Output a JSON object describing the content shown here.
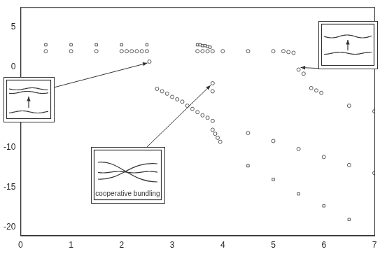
{
  "chart_data": {
    "type": "scatter",
    "xlim": [
      0,
      7
    ],
    "xticks": [
      0,
      1,
      2,
      3,
      4,
      5,
      6,
      7
    ],
    "ylim": [
      -21,
      7.5
    ],
    "yticks": [
      -20,
      -15,
      -10,
      -5,
      0,
      5
    ],
    "grid": false,
    "annotations": [
      {
        "text": "cooperative bundling"
      }
    ],
    "series": [
      {
        "color": "#555555",
        "marker": "square",
        "x": [
          0.5,
          1,
          1.5,
          2,
          2.5,
          3.5,
          3.55,
          3.6,
          3.65,
          3.7,
          3.75
        ],
        "y": [
          2.8,
          2.8,
          2.8,
          2.8,
          2.8,
          2.8,
          2.8,
          2.7,
          2.7,
          2.6,
          2.5
        ]
      },
      {
        "color": "#555555",
        "marker": "circle",
        "x": [
          0.5,
          1,
          1.5,
          2,
          2.1,
          2.2,
          2.3,
          2.4,
          2.5,
          3.5,
          3.6,
          3.7,
          3.8,
          4,
          4.5,
          5,
          5.2,
          5.3,
          5.4
        ],
        "y": [
          2,
          2,
          2,
          2,
          2,
          2,
          2,
          2,
          2,
          2,
          2,
          2,
          2,
          2,
          2,
          2,
          2,
          1.9,
          1.8
        ]
      },
      {
        "color": "#555555",
        "marker": "circle",
        "x": [
          2.55,
          3.8,
          3.8
        ],
        "y": [
          0.7,
          -2.0,
          -3.0
        ]
      },
      {
        "color": "#555555",
        "marker": "circle",
        "x": [
          2.7,
          2.8,
          2.9,
          3.0,
          3.1,
          3.2,
          3.3,
          3.4,
          3.5,
          3.6,
          3.7,
          3.8
        ],
        "y": [
          -2.7,
          -3.0,
          -3.3,
          -3.7,
          -4.0,
          -4.3,
          -4.8,
          -5.2,
          -5.6,
          -6.0,
          -6.3,
          -6.7
        ]
      },
      {
        "color": "#555555",
        "marker": "circle",
        "x": [
          3.8,
          3.85,
          3.9,
          3.95,
          4.5,
          5,
          5.5,
          6,
          6.5,
          7
        ],
        "y": [
          -7.8,
          -8.3,
          -8.8,
          -9.3,
          -8.2,
          -9.2,
          -10.2,
          -11.2,
          -12.2,
          -13.2
        ]
      },
      {
        "color": "#555555",
        "marker": "square",
        "x": [
          4.5,
          5,
          5.5,
          6,
          6.5
        ],
        "y": [
          -12.3,
          -14.0,
          -15.8,
          -17.3,
          -19.0
        ]
      },
      {
        "color": "#555555",
        "marker": "circle",
        "x": [
          5.5,
          5.6,
          5.75,
          5.85,
          5.95,
          6.5,
          7
        ],
        "y": [
          -0.3,
          -0.8,
          -2.6,
          -2.9,
          -3.2,
          -4.8,
          -5.5
        ]
      }
    ]
  }
}
